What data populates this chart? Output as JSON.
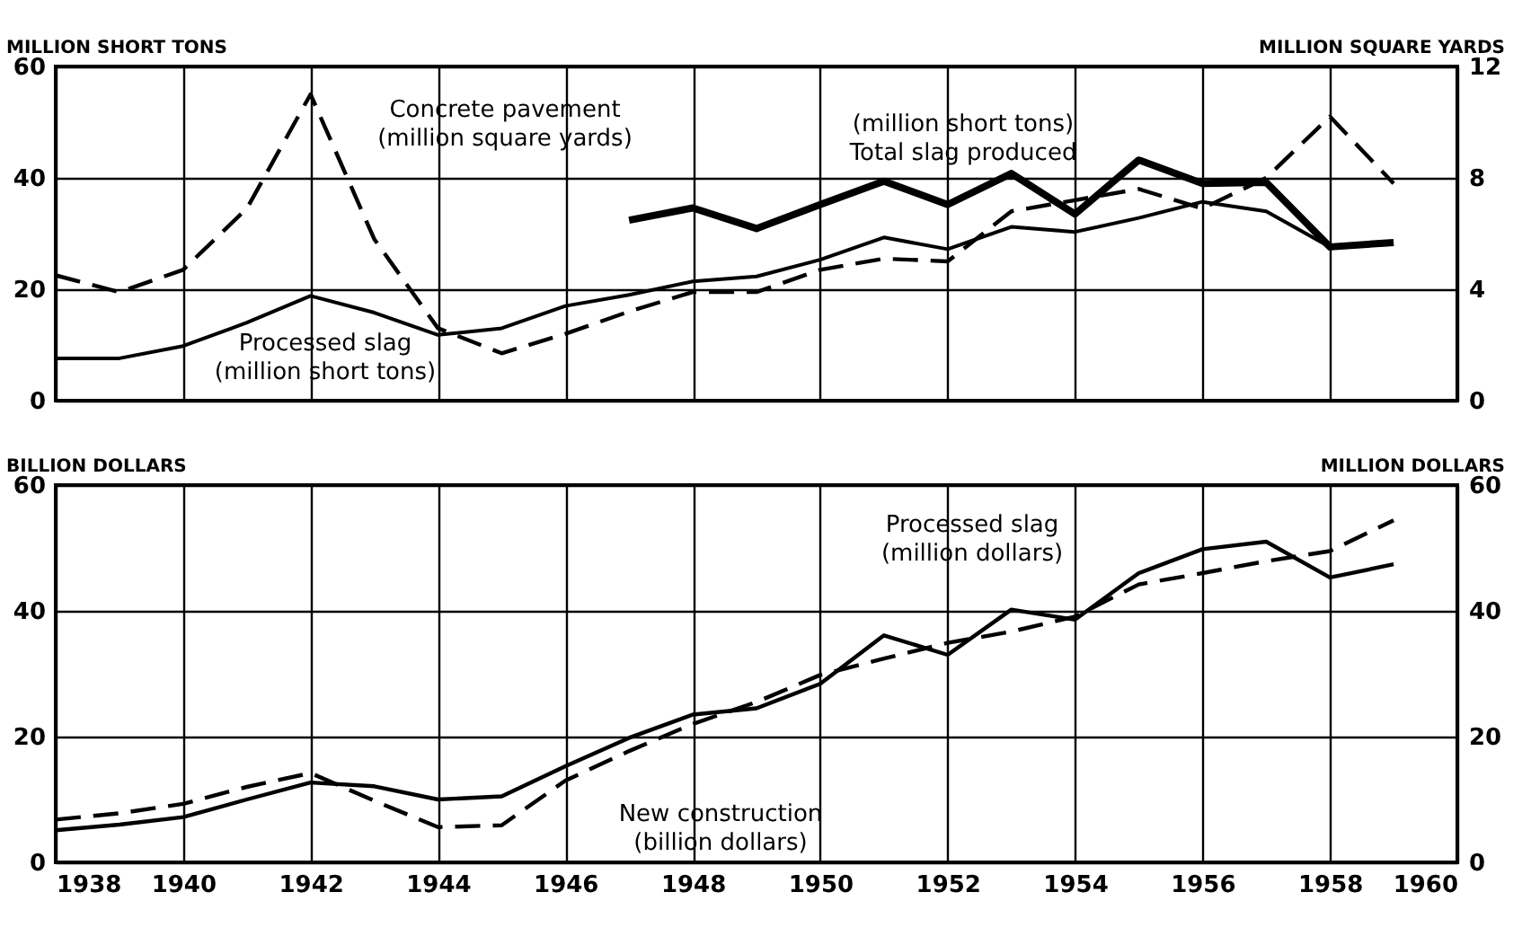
{
  "chart_data": [
    {
      "type": "line",
      "ylabel": "MILLION SHORT TONS",
      "y2label": "MILLION SQUARE YARDS",
      "x": [
        1938,
        1939,
        1940,
        1941,
        1942,
        1943,
        1944,
        1945,
        1946,
        1947,
        1948,
        1949,
        1950,
        1951,
        1952,
        1953,
        1954,
        1955,
        1956,
        1957,
        1958,
        1959
      ],
      "xlim": [
        1938,
        1960
      ],
      "xticks": [
        1938,
        1940,
        1942,
        1944,
        1946,
        1948,
        1950,
        1952,
        1954,
        1956,
        1958,
        1960
      ],
      "ylim": [
        0,
        60
      ],
      "yticks": [
        0,
        20,
        40,
        60
      ],
      "y2lim": [
        0,
        12
      ],
      "y2ticks": [
        0,
        4,
        8,
        12
      ],
      "grid": true,
      "tick_labels": "y",
      "series": [
        {
          "name": "Processed slag (million short tons)",
          "color": "#000000",
          "line_style": "solid",
          "values": [
            7.6,
            7.6,
            9.8,
            14,
            18.8,
            15.8,
            11.8,
            13,
            17,
            19,
            21.4,
            22.3,
            25.3,
            29.3,
            27.2,
            31.2,
            30.3,
            32.8,
            35.7,
            34,
            27.6,
            28.1
          ]
        },
        {
          "name": "(million short tons) Total slag produced",
          "color": "#000000",
          "line_style": "solid",
          "x": [
            1947,
            1948,
            1949,
            1950,
            1951,
            1952,
            1953,
            1954,
            1955,
            1956,
            1957,
            1958,
            1959
          ],
          "values": [
            32.4,
            34.6,
            30.9,
            35.2,
            39.4,
            35.2,
            40.8,
            33.5,
            43.2,
            39,
            39.2,
            27.6,
            28.4
          ]
        },
        {
          "name": "Concrete pavement (million square yards)",
          "color": "#000000",
          "line_style": "dashed",
          "axis": "y2",
          "values": [
            4.5,
            3.9,
            4.7,
            6.9,
            11,
            5.8,
            2.6,
            1.7,
            2.4,
            3.2,
            3.9,
            3.9,
            4.7,
            5.1,
            5,
            6.8,
            7.2,
            7.6,
            6.9,
            8,
            10.2,
            7.8
          ]
        }
      ]
    },
    {
      "type": "line",
      "ylabel": "BILLION DOLLARS",
      "y2label": "MILLION DOLLARS",
      "x": [
        1938,
        1939,
        1940,
        1941,
        1942,
        1943,
        1944,
        1945,
        1946,
        1947,
        1948,
        1949,
        1950,
        1951,
        1952,
        1953,
        1954,
        1955,
        1956,
        1957,
        1958,
        1959
      ],
      "xlim": [
        1938,
        1960
      ],
      "xticks": [
        1938,
        1940,
        1942,
        1944,
        1946,
        1948,
        1950,
        1952,
        1954,
        1956,
        1958,
        1960
      ],
      "ylim": [
        0,
        60
      ],
      "yticks": [
        0,
        20,
        40,
        60
      ],
      "y2lim": [
        0,
        60
      ],
      "y2ticks": [
        0,
        20,
        40,
        60
      ],
      "grid": true,
      "series": [
        {
          "name": "New construction (billion dollars)",
          "color": "#000000",
          "line_style": "dashed",
          "values": [
            6.8,
            7.8,
            9.3,
            12,
            14.2,
            9.8,
            5.6,
            5.9,
            13,
            17.7,
            22,
            25.5,
            29.8,
            32.4,
            34.9,
            36.7,
            39.1,
            44.2,
            46,
            47.9,
            49.5,
            54.4
          ]
        },
        {
          "name": "Processed slag (million dollars)",
          "color": "#000000",
          "line_style": "solid",
          "axis": "y2",
          "values": [
            5.1,
            6,
            7.2,
            10,
            12.7,
            12.1,
            10,
            10.5,
            15.3,
            19.8,
            23.5,
            24.5,
            28.4,
            36.1,
            33,
            40.2,
            38.6,
            46,
            49.8,
            51,
            45.3,
            47.4
          ]
        }
      ]
    }
  ]
}
